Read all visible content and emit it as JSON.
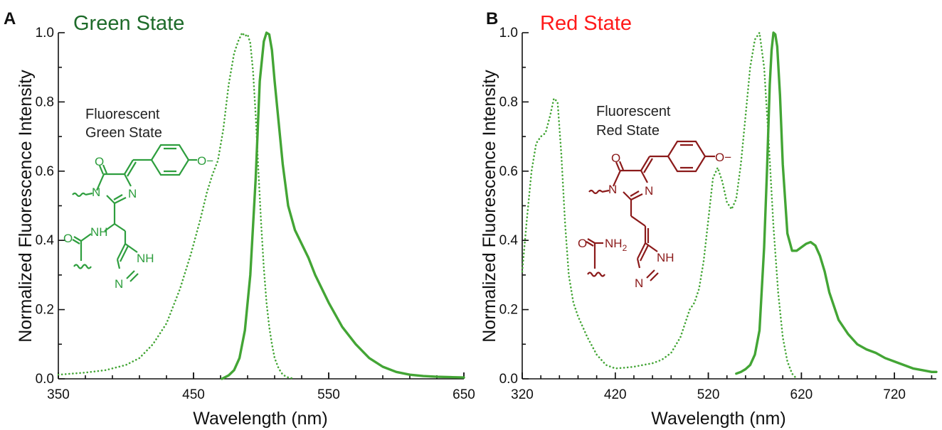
{
  "colors": {
    "spectrum": "#43a535",
    "green_title": "#1e6b2a",
    "red_title": "#ff1a1a",
    "green_structure": "#2e9e3e",
    "red_structure": "#8b1a1a",
    "axis": "#111111"
  },
  "chart_data": [
    {
      "type": "line",
      "panel": "A",
      "title": "Green State",
      "xlabel": "Wavelength (nm)",
      "ylabel": "Normalized Fluorescence Intensity",
      "xlim": [
        350,
        650
      ],
      "ylim": [
        0,
        1
      ],
      "xticks": [
        "350",
        "450",
        "550",
        "650"
      ],
      "yticks": [
        "0.0",
        "0.2",
        "0.4",
        "0.6",
        "0.8",
        "1.0"
      ],
      "grid": false,
      "legend": "none",
      "series": [
        {
          "style": "dotted",
          "x": [
            350,
            370,
            385,
            400,
            410,
            420,
            430,
            440,
            448,
            455,
            460,
            464,
            468,
            472,
            476,
            480,
            483,
            486,
            488,
            490,
            492,
            494,
            496,
            498,
            500,
            502,
            504,
            506,
            508,
            510,
            513,
            516,
            520,
            525
          ],
          "y": [
            0.012,
            0.018,
            0.025,
            0.04,
            0.06,
            0.1,
            0.16,
            0.26,
            0.36,
            0.46,
            0.54,
            0.59,
            0.63,
            0.72,
            0.85,
            0.94,
            0.975,
            1.0,
            0.99,
            0.995,
            0.97,
            0.89,
            0.76,
            0.6,
            0.45,
            0.32,
            0.22,
            0.15,
            0.1,
            0.06,
            0.03,
            0.012,
            0.004,
            0.0
          ]
        },
        {
          "style": "solid",
          "x": [
            471,
            476,
            480,
            484,
            488,
            492,
            496,
            499,
            502,
            504,
            506,
            508,
            510,
            513,
            516,
            520,
            525,
            530,
            535,
            540,
            545,
            550,
            560,
            570,
            580,
            590,
            600,
            610,
            620,
            630,
            640,
            650
          ],
          "y": [
            0.0,
            0.01,
            0.025,
            0.06,
            0.14,
            0.3,
            0.58,
            0.86,
            0.975,
            1.0,
            0.995,
            0.95,
            0.86,
            0.74,
            0.62,
            0.5,
            0.43,
            0.39,
            0.35,
            0.3,
            0.26,
            0.22,
            0.15,
            0.1,
            0.06,
            0.035,
            0.02,
            0.012,
            0.008,
            0.006,
            0.005,
            0.004
          ]
        }
      ]
    },
    {
      "type": "line",
      "panel": "B",
      "title": "Red State",
      "xlabel": "Wavelength (nm)",
      "ylabel": "Normalized Fluorescence Intensity",
      "xlim": [
        320,
        765
      ],
      "ylim": [
        0,
        1
      ],
      "xticks": [
        "320",
        "420",
        "520",
        "620",
        "720"
      ],
      "yticks": [
        "0.0",
        "0.2",
        "0.4",
        "0.6",
        "0.8",
        "1.0"
      ],
      "grid": false,
      "legend": "none",
      "series": [
        {
          "style": "dotted",
          "x": [
            320,
            325,
            330,
            335,
            340,
            345,
            350,
            354,
            358,
            362,
            366,
            370,
            375,
            380,
            390,
            400,
            410,
            420,
            430,
            440,
            450,
            460,
            470,
            480,
            490,
            500,
            505,
            510,
            515,
            520,
            525,
            530,
            535,
            540,
            545,
            550,
            555,
            560,
            565,
            570,
            575,
            580,
            585,
            590,
            595,
            600,
            605,
            610,
            615
          ],
          "y": [
            0.31,
            0.46,
            0.6,
            0.68,
            0.7,
            0.71,
            0.76,
            0.81,
            0.8,
            0.65,
            0.45,
            0.3,
            0.22,
            0.18,
            0.12,
            0.07,
            0.04,
            0.03,
            0.032,
            0.035,
            0.04,
            0.045,
            0.055,
            0.075,
            0.12,
            0.2,
            0.22,
            0.26,
            0.34,
            0.46,
            0.58,
            0.61,
            0.57,
            0.51,
            0.49,
            0.52,
            0.62,
            0.76,
            0.9,
            0.98,
            1.0,
            0.9,
            0.68,
            0.44,
            0.25,
            0.12,
            0.05,
            0.015,
            0.0
          ]
        },
        {
          "style": "solid",
          "x": [
            550,
            555,
            560,
            565,
            570,
            575,
            580,
            583,
            586,
            588,
            590,
            592,
            594,
            597,
            600,
            605,
            610,
            615,
            620,
            625,
            630,
            635,
            640,
            645,
            650,
            660,
            670,
            680,
            690,
            700,
            710,
            720,
            730,
            740,
            750,
            760,
            765
          ],
          "y": [
            0.015,
            0.02,
            0.028,
            0.04,
            0.07,
            0.14,
            0.38,
            0.6,
            0.85,
            0.95,
            1.0,
            0.995,
            0.96,
            0.82,
            0.62,
            0.42,
            0.37,
            0.37,
            0.38,
            0.39,
            0.395,
            0.385,
            0.355,
            0.31,
            0.25,
            0.17,
            0.13,
            0.1,
            0.085,
            0.075,
            0.06,
            0.05,
            0.04,
            0.03,
            0.025,
            0.02,
            0.02
          ]
        }
      ]
    }
  ],
  "panels": [
    {
      "letter": "A",
      "title": "Green State",
      "ylabel": "Normalized Fluorescence Intensity",
      "xlabel": "Wavelength (nm)",
      "molecule": {
        "caption1": "Fluorescent",
        "caption2": "Green State",
        "atoms": {
          "ketone_o": "O",
          "n1": "N",
          "n2": "N",
          "phenolate": "O−",
          "amide_o": "O",
          "amide_nh": "NH",
          "imid_nh": "NH",
          "imid_n": "N"
        }
      }
    },
    {
      "letter": "B",
      "title": "Red State",
      "ylabel": "Normalized Fluorescence Intensity",
      "xlabel": "Wavelength (nm)",
      "molecule": {
        "caption1": "Fluorescent",
        "caption2": "Red State",
        "atoms": {
          "ketone_o": "O",
          "n1": "N",
          "n2": "N",
          "phenolate": "O−",
          "amide_o": "O",
          "amide_nh": "NH",
          "amide_sub": "2",
          "imid_nh": "NH",
          "imid_n": "N"
        }
      }
    }
  ]
}
